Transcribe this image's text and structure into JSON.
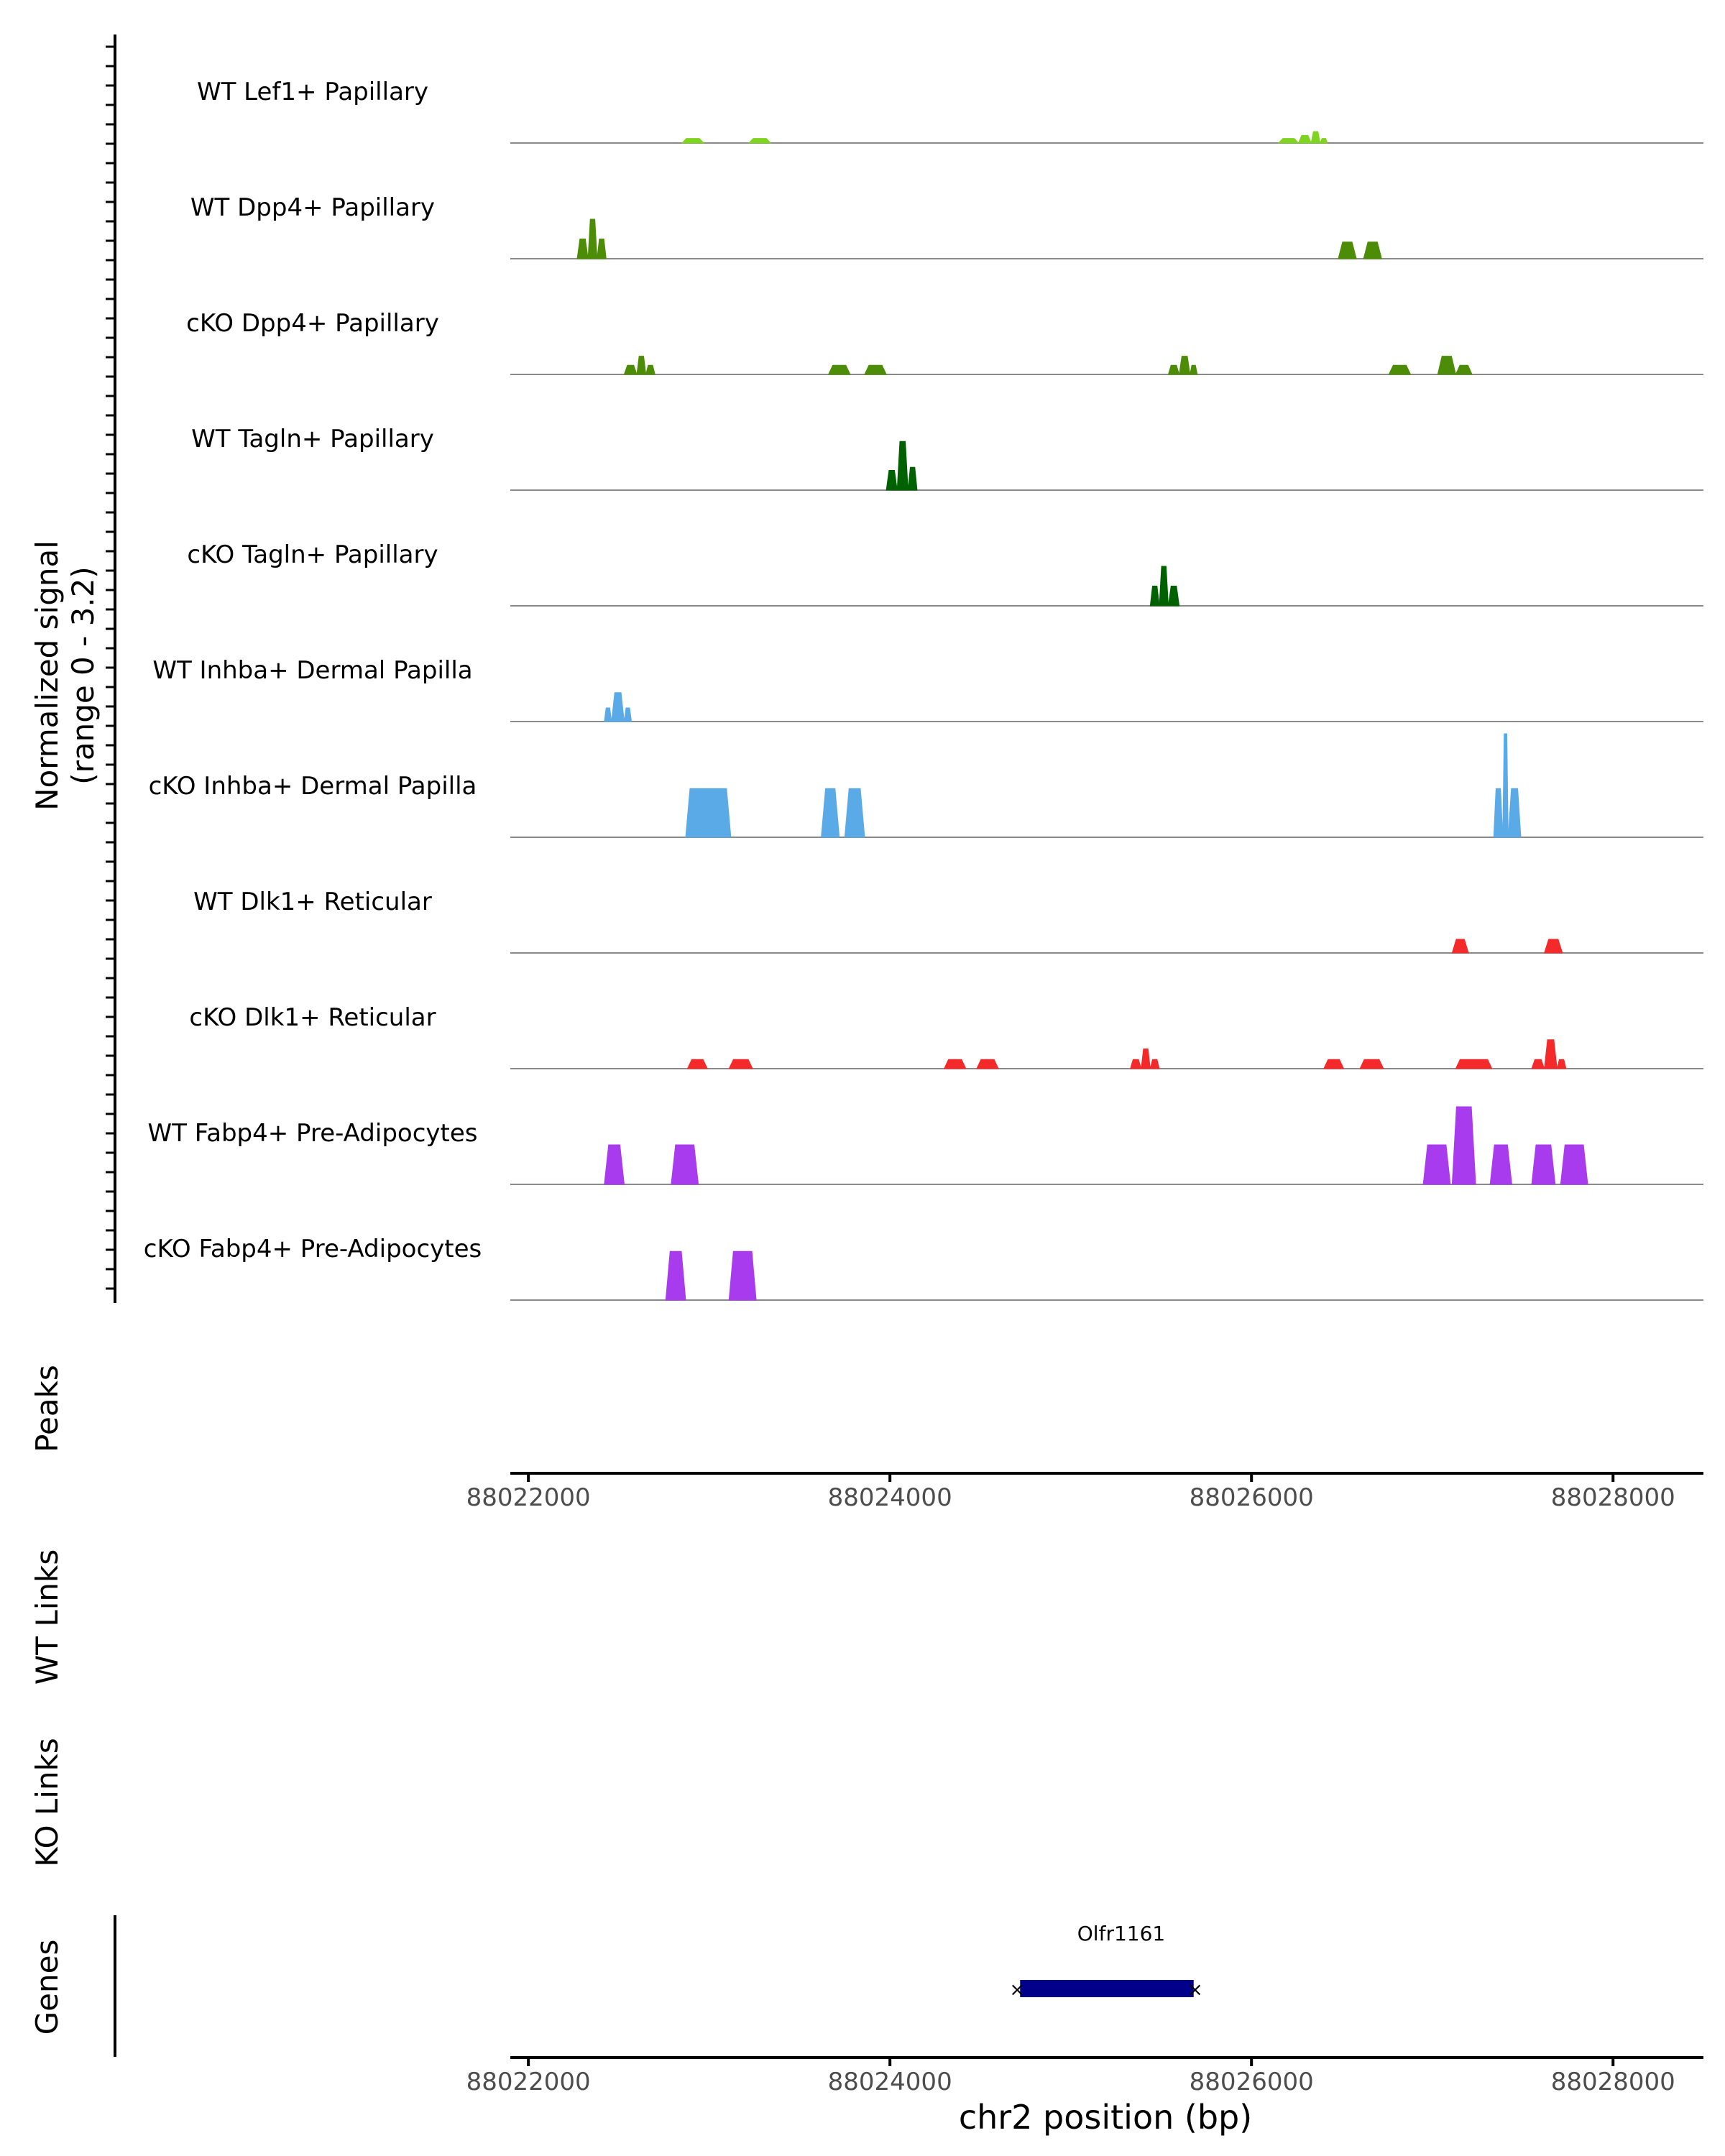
{
  "chart_data": {
    "type": "area",
    "figure": "genome coverage plot",
    "signal_ylabel": [
      "Normalized signal",
      "(range 0 - 3.2)"
    ],
    "signal_range": [
      0,
      3.2
    ],
    "xlim": [
      88021900,
      88028500
    ],
    "x_ticks": [
      88022000,
      88024000,
      88026000,
      88028000
    ],
    "x_tick_labels": [
      "88022000",
      "88024000",
      "88026000",
      "88028000"
    ],
    "xlabel": "chr2 position (bp)",
    "track_labels": {
      "peaks": "Peaks",
      "wt_links": "WT Links",
      "ko_links": "KO Links",
      "genes": "Genes"
    },
    "tracks": [
      {
        "name": "WT Lef1+ Papillary",
        "color": "#7FD321",
        "peaks": [
          [
            88022850,
            88022970,
            0.3
          ],
          [
            88023220,
            88023340,
            0.3
          ],
          [
            88026150,
            88026260,
            0.3
          ],
          [
            88026260,
            88026330,
            0.5
          ],
          [
            88026330,
            88026380,
            0.75
          ],
          [
            88026380,
            88026420,
            0.3
          ]
        ]
      },
      {
        "name": "WT Dpp4+ Papillary",
        "color": "#4D8C07",
        "peaks": [
          [
            88022270,
            88022330,
            1.3
          ],
          [
            88022330,
            88022380,
            2.6
          ],
          [
            88022380,
            88022430,
            1.3
          ],
          [
            88026480,
            88026580,
            1.1
          ],
          [
            88026620,
            88026720,
            1.1
          ]
        ]
      },
      {
        "name": "cKO Dpp4+ Papillary",
        "color": "#4D8C07",
        "peaks": [
          [
            88022530,
            88022600,
            0.6
          ],
          [
            88022600,
            88022650,
            1.2
          ],
          [
            88022650,
            88022700,
            0.6
          ],
          [
            88023660,
            88023780,
            0.6
          ],
          [
            88023860,
            88023980,
            0.6
          ],
          [
            88025540,
            88025600,
            0.6
          ],
          [
            88025600,
            88025660,
            1.2
          ],
          [
            88025660,
            88025700,
            0.6
          ],
          [
            88026760,
            88026880,
            0.6
          ],
          [
            88027030,
            88027130,
            1.2
          ],
          [
            88027130,
            88027220,
            0.6
          ]
        ]
      },
      {
        "name": "WT Tagln+ Papillary",
        "color": "#006100",
        "peaks": [
          [
            88023980,
            88024040,
            1.3
          ],
          [
            88024040,
            88024100,
            3.2
          ],
          [
            88024100,
            88024150,
            1.5
          ]
        ]
      },
      {
        "name": "cKO Tagln+ Papillary",
        "color": "#006100",
        "peaks": [
          [
            88025440,
            88025490,
            1.3
          ],
          [
            88025490,
            88025540,
            2.6
          ],
          [
            88025540,
            88025600,
            1.3
          ]
        ]
      },
      {
        "name": "WT Inhba+ Dermal Papilla",
        "color": "#5BAAE8",
        "peaks": [
          [
            88022420,
            88022460,
            0.9
          ],
          [
            88022460,
            88022530,
            1.9
          ],
          [
            88022530,
            88022570,
            0.9
          ]
        ]
      },
      {
        "name": "cKO Inhba+ Dermal Papilla",
        "color": "#5BAAE8",
        "peaks": [
          [
            88022870,
            88023120,
            3.2
          ],
          [
            88023620,
            88023720,
            3.2
          ],
          [
            88023750,
            88023860,
            3.2
          ],
          [
            88027340,
            88027390,
            3.2
          ],
          [
            88027390,
            88027420,
            6.8
          ],
          [
            88027420,
            88027490,
            3.2
          ]
        ]
      },
      {
        "name": "WT Dlk1+ Reticular",
        "color": "#F42A2A",
        "peaks": [
          [
            88027110,
            88027200,
            0.9
          ],
          [
            88027620,
            88027720,
            0.9
          ]
        ]
      },
      {
        "name": "cKO Dlk1+ Reticular",
        "color": "#F42A2A",
        "peaks": [
          [
            88022880,
            88022990,
            0.6
          ],
          [
            88023110,
            88023240,
            0.6
          ],
          [
            88024300,
            88024420,
            0.6
          ],
          [
            88024480,
            88024600,
            0.6
          ],
          [
            88025330,
            88025390,
            0.6
          ],
          [
            88025390,
            88025440,
            1.3
          ],
          [
            88025440,
            88025490,
            0.6
          ],
          [
            88026400,
            88026510,
            0.6
          ],
          [
            88026600,
            88026730,
            0.6
          ],
          [
            88027130,
            88027330,
            0.6
          ],
          [
            88027550,
            88027620,
            0.6
          ],
          [
            88027620,
            88027690,
            1.9
          ],
          [
            88027690,
            88027740,
            0.6
          ]
        ]
      },
      {
        "name": "WT Fabp4+ Pre-Adipocytes",
        "color": "#A93BEE",
        "peaks": [
          [
            88022420,
            88022530,
            2.6
          ],
          [
            88022790,
            88022940,
            2.6
          ],
          [
            88026950,
            88027100,
            2.6
          ],
          [
            88027110,
            88027240,
            5.1
          ],
          [
            88027320,
            88027440,
            2.6
          ],
          [
            88027550,
            88027680,
            2.6
          ],
          [
            88027710,
            88027860,
            2.6
          ]
        ]
      },
      {
        "name": "cKO Fabp4+ Pre-Adipocytes",
        "color": "#A93BEE",
        "peaks": [
          [
            88022760,
            88022870,
            3.2
          ],
          [
            88023110,
            88023260,
            3.2
          ]
        ]
      }
    ],
    "genes": [
      {
        "name": "Olfr1161",
        "start": 88024720,
        "end": 88025680,
        "strand": "-",
        "color": "#00008B"
      }
    ]
  }
}
